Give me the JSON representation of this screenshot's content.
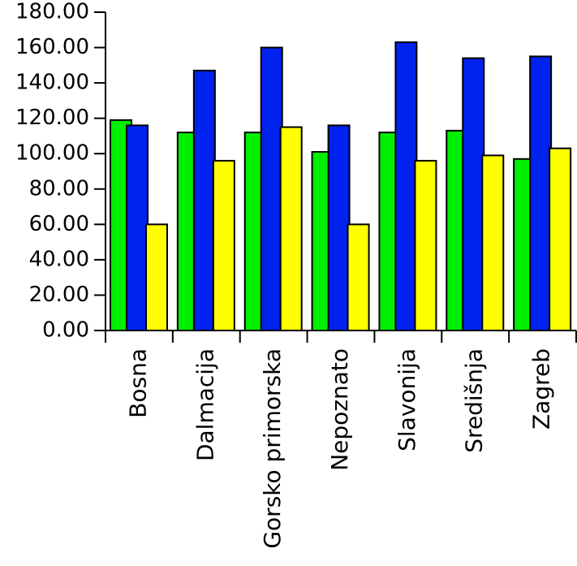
{
  "chart_data": {
    "type": "bar",
    "categories": [
      "Bosna",
      "Dalmacija",
      "Gorsko primorska",
      "Nepoznato",
      "Slavonija",
      "Središnja",
      "Zagreb"
    ],
    "series": [
      {
        "color": "#00ee00",
        "values": [
          119,
          112,
          112,
          101,
          112,
          113,
          97
        ]
      },
      {
        "color": "#0022ee",
        "values": [
          116,
          147,
          160,
          116,
          163,
          154,
          155
        ]
      },
      {
        "color": "#ffff00",
        "values": [
          60,
          96,
          115,
          60,
          96,
          99,
          103
        ]
      }
    ],
    "ylim": [
      0,
      180
    ],
    "yticks": [
      {
        "value": 0,
        "label": "0.00"
      },
      {
        "value": 20,
        "label": "20.00"
      },
      {
        "value": 40,
        "label": "40.00"
      },
      {
        "value": 60,
        "label": "60.00"
      },
      {
        "value": 80,
        "label": "80.00"
      },
      {
        "value": 100,
        "label": "100.00"
      },
      {
        "value": 120,
        "label": "120.00"
      },
      {
        "value": 140,
        "label": "140.00"
      },
      {
        "value": 160,
        "label": "160.00"
      },
      {
        "value": 180,
        "label": "180.00"
      }
    ]
  }
}
